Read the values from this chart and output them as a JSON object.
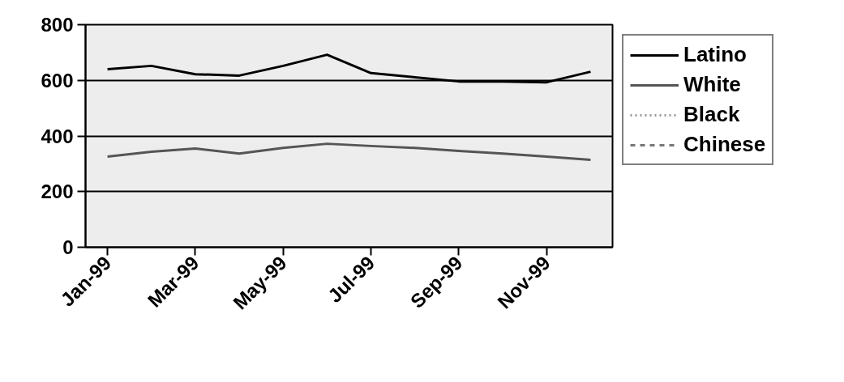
{
  "chart_data": {
    "type": "line",
    "categories": [
      "Jan-99",
      null,
      "Mar-99",
      null,
      "May-99",
      null,
      "Jul-99",
      null,
      "Sep-99",
      null,
      "Nov-99",
      null
    ],
    "series": [
      {
        "name": "Latino",
        "color": "#000000",
        "line_style": "solid",
        "values": [
          640,
          652,
          622,
          617,
          652,
          692,
          626,
          611,
          596,
          596,
          593,
          631
        ]
      },
      {
        "name": "White",
        "color": "#555555",
        "line_style": "solid",
        "values": [
          326,
          343,
          355,
          337,
          357,
          372,
          364,
          357,
          346,
          337,
          326,
          314
        ]
      },
      {
        "name": "Black",
        "color": "#999999",
        "line_style": "dotted",
        "values": [
          null,
          null,
          null,
          null,
          null,
          null,
          null,
          null,
          null,
          null,
          null,
          null
        ]
      },
      {
        "name": "Chinese",
        "color": "#777777",
        "line_style": "dashed",
        "values": [
          null,
          null,
          null,
          null,
          null,
          null,
          null,
          null,
          null,
          null,
          null,
          null
        ]
      }
    ],
    "ylim": [
      0,
      800
    ],
    "yticks": [
      0,
      200,
      400,
      600,
      800
    ],
    "grid": "y",
    "legend": "right",
    "marker": "none"
  }
}
